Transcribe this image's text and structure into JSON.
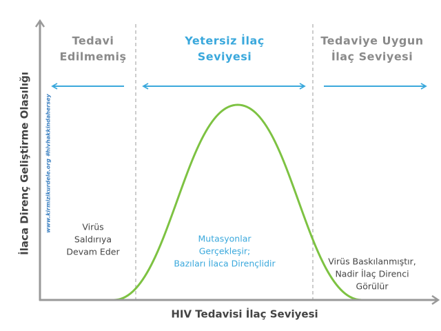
{
  "y_axis_label": "İlaca Direnç Geliştirme Olasılığı",
  "x_axis_label": "HIV Tedavisi İlaç Seviyesi",
  "watermark": "www.kirmizikurdele.org #hivhakkindahersey",
  "zones": [
    {
      "title": [
        "Tedavi",
        "Edilmemiş"
      ],
      "description": [
        "Virüs",
        "Saldırıya",
        "Devam Eder"
      ]
    },
    {
      "title": [
        "Yetersiz İlaç",
        "Seviyesi"
      ],
      "description": [
        "Mutasyonlar",
        "Gerçekleşir;",
        "Bazıları İlaca Dirençlidir"
      ]
    },
    {
      "title": [
        "Tedaviye Uygun",
        "İlaç Seviyesi"
      ],
      "description": [
        "Virüs Baskılanmıştır,",
        "Nadir İlaç Direnci",
        "Görülür"
      ]
    }
  ]
}
